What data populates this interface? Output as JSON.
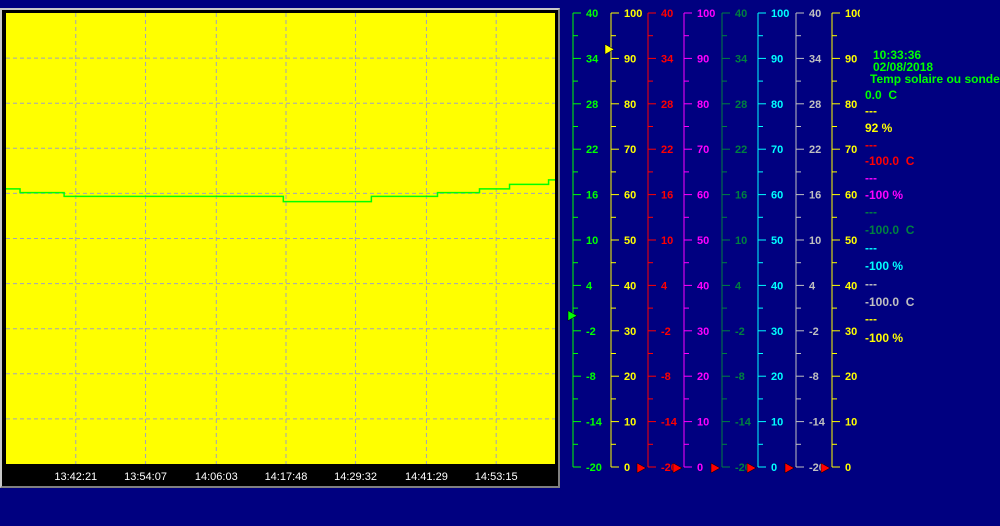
{
  "colors": {
    "background": "#000080",
    "plot_background": "#ffff00",
    "grid": "#a0a0c0",
    "trace": "#00ff00"
  },
  "chart_data": {
    "type": "line",
    "x_range": [
      "13:30:35",
      "15:03:10"
    ],
    "x_ticks": [
      "13:42:21",
      "13:54:07",
      "14:06:03",
      "14:17:48",
      "14:29:32",
      "14:41:29",
      "14:53:15"
    ],
    "grid": true,
    "y_gridlines": 10,
    "series": [
      {
        "axis": 0,
        "color": "#00ff00",
        "points": [
          [
            "13:30:35",
            16.6
          ],
          [
            "13:32:57",
            16.1
          ],
          [
            "13:40:23",
            15.6
          ],
          [
            "14:17:21",
            14.9
          ],
          [
            "14:32:12",
            15.6
          ],
          [
            "14:43:21",
            16.1
          ],
          [
            "14:50:26",
            16.6
          ],
          [
            "14:55:30",
            17.2
          ],
          [
            "15:02:05",
            17.8
          ],
          [
            "15:03:10",
            17.8
          ]
        ]
      }
    ],
    "axes": [
      {
        "color": "#00ff00",
        "min": -20,
        "max": 40,
        "step": 6,
        "labels": [
          "40",
          "34",
          "28",
          "22",
          "16",
          "10",
          "4",
          "-2",
          "-8",
          "-14",
          "-20"
        ],
        "marker": {
          "value": 0,
          "color": "#00ff00"
        }
      },
      {
        "color": "#ffff00",
        "min": 0,
        "max": 100,
        "step": 10,
        "labels": [
          "100",
          "90",
          "80",
          "70",
          "60",
          "50",
          "40",
          "30",
          "20",
          "10",
          "0"
        ],
        "marker": {
          "value": 92,
          "color": "#ffff00"
        }
      },
      {
        "color": "#ff0000",
        "min": -20,
        "max": 40,
        "step": 6,
        "labels": [
          "40",
          "34",
          "28",
          "22",
          "16",
          "10",
          "4",
          "-2",
          "-8",
          "-14",
          "-20"
        ],
        "marker": {
          "value": -20,
          "color": "#ff0000"
        }
      },
      {
        "color": "#ff00ff",
        "min": 0,
        "max": 100,
        "step": 10,
        "labels": [
          "100",
          "90",
          "80",
          "70",
          "60",
          "50",
          "40",
          "30",
          "20",
          "10",
          "0"
        ],
        "marker": {
          "value": 0,
          "color": "#ff0000"
        }
      },
      {
        "color": "#008040",
        "min": -20,
        "max": 40,
        "step": 6,
        "labels": [
          "40",
          "34",
          "28",
          "22",
          "16",
          "10",
          "4",
          "-2",
          "-8",
          "-14",
          "-20"
        ],
        "marker": {
          "value": -20,
          "color": "#ff0000"
        }
      },
      {
        "color": "#00ffff",
        "min": 0,
        "max": 100,
        "step": 10,
        "labels": [
          "100",
          "90",
          "80",
          "70",
          "60",
          "50",
          "40",
          "30",
          "20",
          "10",
          "0"
        ],
        "marker": {
          "value": 0,
          "color": "#ff0000"
        }
      },
      {
        "color": "#c0c0c0",
        "min": -20,
        "max": 40,
        "step": 6,
        "labels": [
          "40",
          "34",
          "28",
          "22",
          "16",
          "10",
          "4",
          "-2",
          "-8",
          "-14",
          "-20"
        ],
        "marker": {
          "value": -20,
          "color": "#ff0000"
        }
      },
      {
        "color": "#ffff00",
        "min": 0,
        "max": 100,
        "step": 10,
        "labels": [
          "100",
          "90",
          "80",
          "70",
          "60",
          "50",
          "40",
          "30",
          "20",
          "10",
          "0"
        ],
        "marker": {
          "value": 0,
          "color": "#ff0000"
        }
      }
    ]
  },
  "panel": {
    "time": "10:33:36",
    "date": "02/08/2018",
    "title": "Temp solaire ou sonde",
    "readings": [
      {
        "text": "0.0  C",
        "color": "#00ff00"
      },
      {
        "text": "---",
        "color": "#ffff00"
      },
      {
        "text": "92 %",
        "color": "#ffff00"
      },
      {
        "text": "---",
        "color": "#ff0000"
      },
      {
        "text": "-100.0  C",
        "color": "#ff0000"
      },
      {
        "text": "---",
        "color": "#ff00ff"
      },
      {
        "text": "-100 %",
        "color": "#ff00ff"
      },
      {
        "text": "---",
        "color": "#008040"
      },
      {
        "text": "-100.0  C",
        "color": "#008040"
      },
      {
        "text": "---",
        "color": "#00ffff"
      },
      {
        "text": "-100 %",
        "color": "#00ffff"
      },
      {
        "text": "---",
        "color": "#c0c0c0"
      },
      {
        "text": "-100.0  C",
        "color": "#c0c0c0"
      },
      {
        "text": "---",
        "color": "#ffff00"
      },
      {
        "text": "-100 %",
        "color": "#ffff00"
      }
    ]
  }
}
